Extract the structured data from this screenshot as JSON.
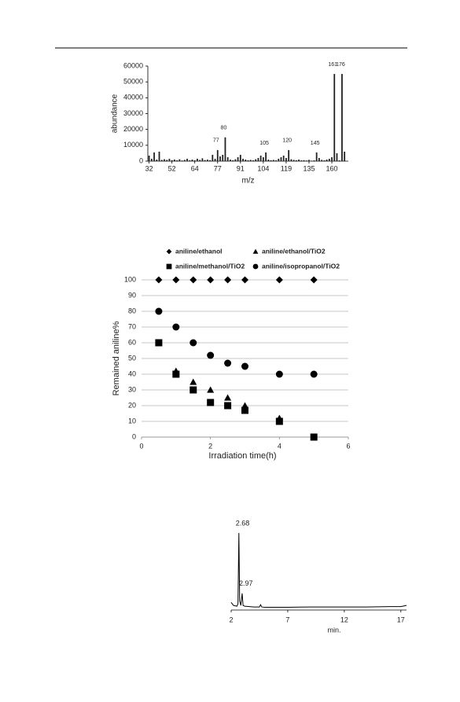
{
  "chart_data": [
    {
      "type": "bar",
      "x_label": "m/z",
      "y_label": "abundance",
      "color": "#222222",
      "categories": [
        "32",
        null,
        null,
        null,
        null,
        null,
        null,
        null,
        null,
        "52",
        null,
        null,
        null,
        null,
        null,
        null,
        null,
        null,
        "64",
        null,
        null,
        null,
        null,
        null,
        null,
        null,
        null,
        "77",
        null,
        null,
        null,
        null,
        null,
        null,
        null,
        null,
        "91",
        null,
        null,
        null,
        null,
        null,
        null,
        null,
        null,
        "104",
        null,
        null,
        null,
        null,
        null,
        null,
        null,
        null,
        "119",
        null,
        null,
        null,
        null,
        null,
        null,
        null,
        null,
        "135",
        null,
        null,
        null,
        null,
        null,
        null,
        null,
        null,
        "160",
        null,
        null,
        null,
        null,
        null,
        null
      ],
      "values": [
        3500,
        1500,
        5500,
        1000,
        6000,
        800,
        1200,
        800,
        1500,
        600,
        1000,
        500,
        1200,
        400,
        800,
        1500,
        600,
        1000,
        500,
        1500,
        800,
        1800,
        700,
        1000,
        600,
        4000,
        1500,
        7000,
        3000,
        4000,
        15000,
        2500,
        1000,
        600,
        1200,
        2500,
        4000,
        1500,
        1000,
        600,
        800,
        500,
        1200,
        2000,
        3500,
        2500,
        5500,
        1000,
        600,
        800,
        500,
        1500,
        2500,
        3500,
        2000,
        7000,
        1200,
        800,
        600,
        1000,
        500,
        600,
        400,
        800,
        300,
        500,
        5500,
        2000,
        800,
        500,
        1000,
        1500,
        2500,
        55000,
        5000,
        500,
        55000,
        6000,
        0
      ],
      "peak_labels": [
        null,
        null,
        null,
        null,
        null,
        null,
        null,
        null,
        null,
        null,
        null,
        null,
        null,
        null,
        null,
        null,
        null,
        null,
        null,
        null,
        null,
        null,
        null,
        null,
        null,
        null,
        null,
        "77",
        null,
        null,
        "80",
        null,
        null,
        null,
        null,
        null,
        null,
        null,
        null,
        null,
        null,
        null,
        null,
        null,
        null,
        null,
        "105",
        null,
        null,
        null,
        null,
        null,
        null,
        null,
        null,
        "120",
        null,
        null,
        null,
        null,
        null,
        null,
        null,
        null,
        null,
        null,
        "145",
        null,
        null,
        null,
        null,
        null,
        null,
        "161",
        null,
        null,
        "176",
        null,
        null
      ],
      "ylim": [
        0,
        60000
      ],
      "yticks": [
        0,
        10000,
        20000,
        30000,
        40000,
        50000,
        60000
      ]
    },
    {
      "type": "scatter",
      "x_label": "Irradiation time(h)",
      "y_label": "Remained aniline%",
      "legend": "top",
      "grid": true,
      "xlim": [
        0,
        6
      ],
      "xticks": [
        0,
        2,
        4,
        6
      ],
      "ylim": [
        0,
        100
      ],
      "yticks": [
        0,
        10,
        20,
        30,
        40,
        50,
        60,
        70,
        80,
        90,
        100
      ],
      "series": [
        {
          "name": "aniline/ethanol",
          "marker": "diamond",
          "color": "#000000",
          "x": [
            0.5,
            1,
            1.5,
            2,
            2.5,
            3,
            4,
            5
          ],
          "values": [
            100,
            100,
            100,
            100,
            100,
            100,
            100,
            100
          ]
        },
        {
          "name": "aniline/ethanol/TiO2",
          "marker": "triangle",
          "color": "#000000",
          "x": [
            1,
            1.5,
            2,
            2.5,
            3,
            4
          ],
          "values": [
            42,
            35,
            30,
            25,
            20,
            12
          ]
        },
        {
          "name": "aniline/methanol/TiO2",
          "marker": "square",
          "color": "#000000",
          "x": [
            0.5,
            1,
            1.5,
            2,
            2.5,
            3,
            4,
            5
          ],
          "values": [
            60,
            40,
            30,
            22,
            20,
            17,
            10,
            0
          ]
        },
        {
          "name": "aniline/isopropanol/TiO2",
          "marker": "circle",
          "color": "#000000",
          "x": [
            0.5,
            1,
            1.5,
            2,
            2.5,
            3,
            4,
            5
          ],
          "values": [
            80,
            70,
            60,
            52,
            47,
            45,
            40,
            40
          ]
        }
      ]
    },
    {
      "type": "line",
      "x_label": "min.",
      "color": "#000000",
      "xlim": [
        2,
        17.5
      ],
      "xticks": [
        2,
        7,
        12,
        17
      ],
      "ylim": [
        0,
        100
      ],
      "peaks": [
        2.68,
        2.97
      ],
      "x": [
        2,
        2.2,
        2.5,
        2.6,
        2.68,
        2.75,
        2.85,
        2.97,
        3.05,
        3.2,
        4,
        4.5,
        4.6,
        4.7,
        5,
        7,
        9,
        12,
        14,
        16,
        17,
        17.5
      ],
      "values": [
        8,
        4,
        3,
        6,
        100,
        10,
        4,
        20,
        4,
        3,
        2,
        2,
        5,
        2,
        1.5,
        1.5,
        2,
        2,
        2,
        2.5,
        2.5,
        4
      ]
    }
  ]
}
